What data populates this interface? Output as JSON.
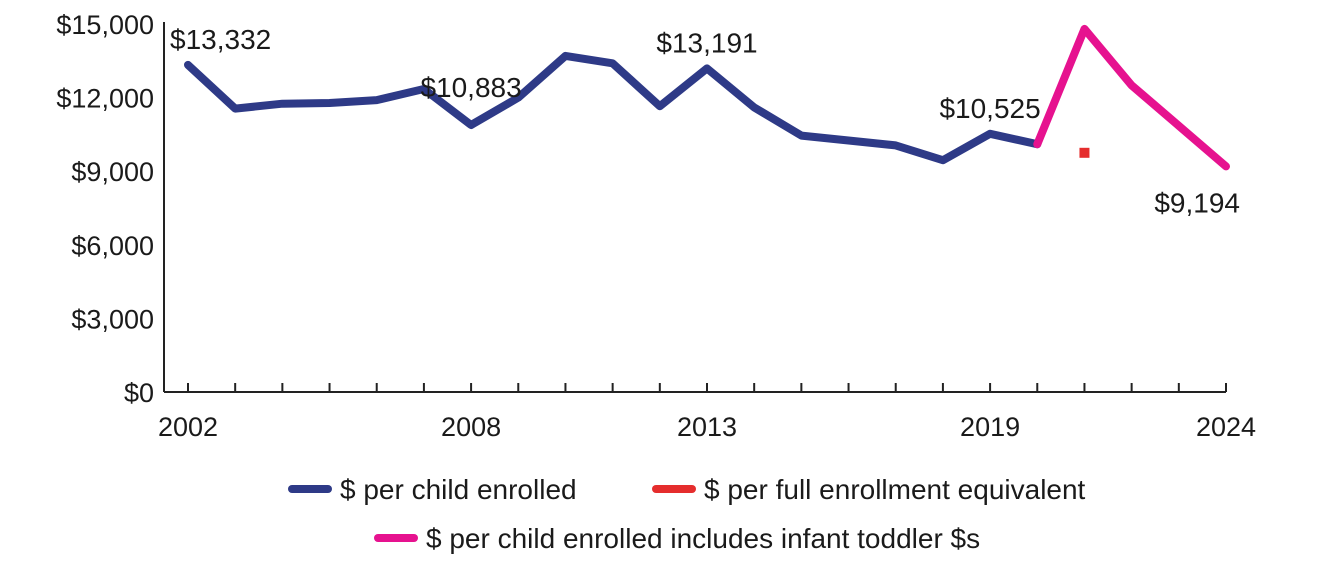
{
  "chart_data": {
    "type": "line",
    "x": [
      2002,
      2003,
      2004,
      2005,
      2006,
      2007,
      2008,
      2009,
      2010,
      2011,
      2012,
      2013,
      2014,
      2015,
      2016,
      2017,
      2018,
      2019,
      2020,
      2021,
      2022,
      2023,
      2024
    ],
    "x_tick_labels": [
      "2002",
      "2008",
      "2013",
      "2019",
      "2024"
    ],
    "x_tick_label_years": [
      2002,
      2008,
      2013,
      2019,
      2024
    ],
    "xlim": [
      2002,
      2024
    ],
    "ylim": [
      0,
      15000
    ],
    "y_ticks": [
      0,
      3000,
      6000,
      9000,
      12000,
      15000
    ],
    "y_tick_labels": [
      "$0",
      "$3,000",
      "$6,000",
      "$9,000",
      "$12,000",
      "$15,000"
    ],
    "grid": false,
    "legend_position": "bottom",
    "series": [
      {
        "name": "$ per child enrolled",
        "color": "#2e3a87",
        "style": "line",
        "x": [
          2002,
          2003,
          2004,
          2005,
          2006,
          2007,
          2008,
          2009,
          2010,
          2011,
          2012,
          2013,
          2014,
          2015,
          2016,
          2017,
          2018,
          2019,
          2020
        ],
        "values": [
          13332,
          11550,
          11750,
          11780,
          11900,
          12350,
          10883,
          12000,
          13700,
          13400,
          11650,
          13191,
          11600,
          10450,
          10250,
          10050,
          9450,
          10525,
          10100
        ]
      },
      {
        "name": "$ per full enrollment equivalent",
        "color": "#e52d2d",
        "style": "marker",
        "x": [
          2021
        ],
        "values": [
          9750
        ]
      },
      {
        "name": "$ per child enrolled includes infant toddler $s",
        "color": "#e6128f",
        "style": "line",
        "x": [
          2020,
          2021,
          2022,
          2023,
          2024
        ],
        "values": [
          10100,
          14800,
          12500,
          10850,
          9194
        ]
      }
    ],
    "annotations": [
      {
        "text": "$13,332",
        "x": 2002,
        "y": 13332,
        "pos": "above"
      },
      {
        "text": "$10,883",
        "x": 2008,
        "y": 10883,
        "pos": "above-high"
      },
      {
        "text": "$13,191",
        "x": 2013,
        "y": 13191,
        "pos": "above"
      },
      {
        "text": "$10,525",
        "x": 2019,
        "y": 10525,
        "pos": "above"
      },
      {
        "text": "$9,194",
        "x": 2024,
        "y": 9194,
        "pos": "below"
      }
    ]
  }
}
